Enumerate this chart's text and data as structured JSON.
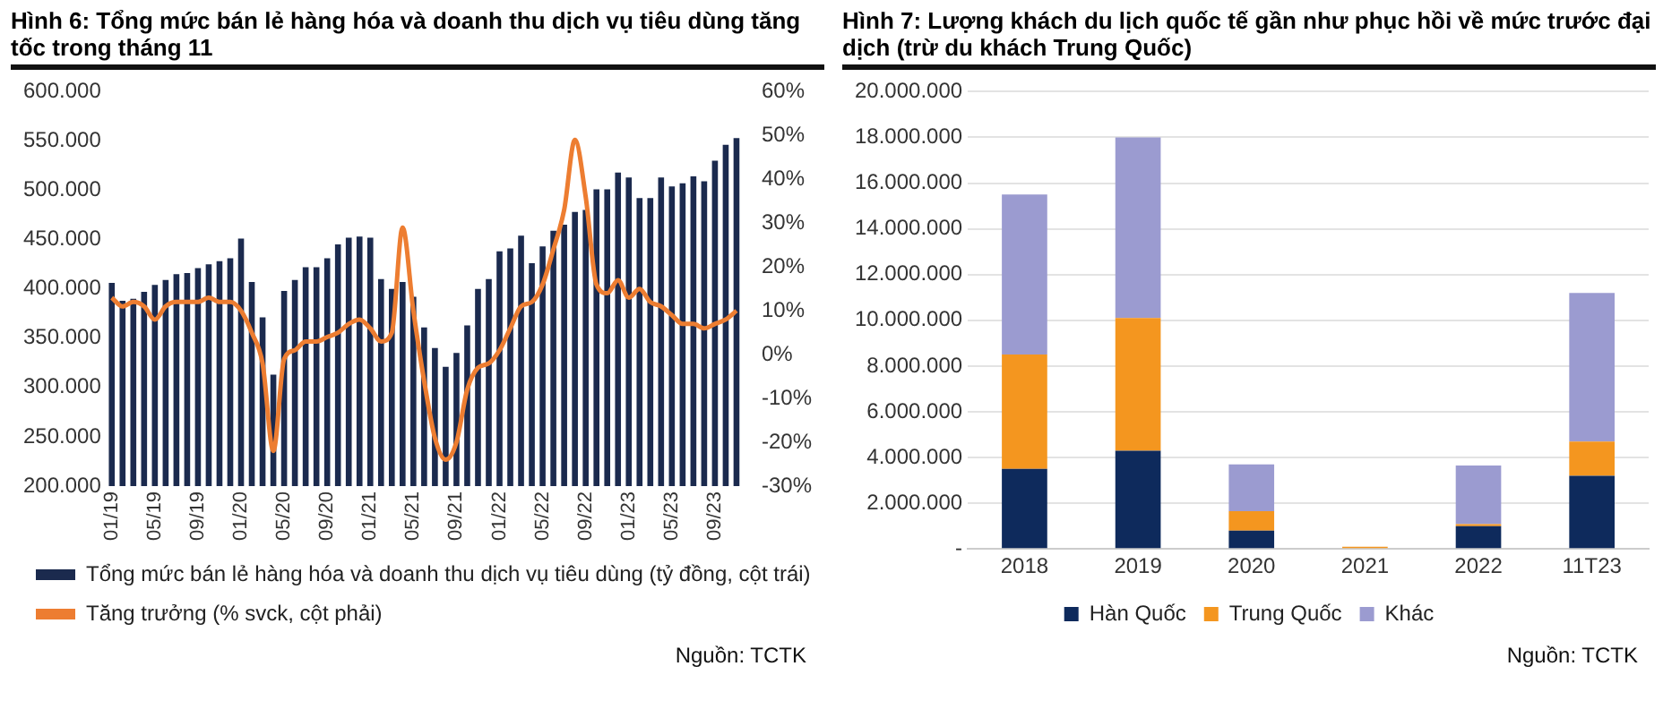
{
  "chart_data": [
    {
      "type": "bar",
      "title": "Hình 6: Tổng mức bán lẻ hàng hóa và doanh thu dịch vụ tiêu dùng tăng tốc trong tháng 11",
      "categories": [
        "01/19",
        null,
        null,
        null,
        "05/19",
        null,
        null,
        null,
        "09/19",
        null,
        null,
        null,
        "01/20",
        null,
        null,
        null,
        "05/20",
        null,
        null,
        null,
        "09/20",
        null,
        null,
        null,
        "01/21",
        null,
        null,
        null,
        "05/21",
        null,
        null,
        null,
        "09/21",
        null,
        null,
        null,
        "01/22",
        null,
        null,
        null,
        "05/22",
        null,
        null,
        null,
        "09/22",
        null,
        null,
        null,
        "01/23",
        null,
        null,
        null,
        "05/23",
        null,
        null,
        null,
        "09/23",
        null,
        null
      ],
      "series": [
        {
          "name": "Tổng mức bán lẻ hàng hóa và doanh thu dịch vụ tiêu dùng (tỷ đồng, cột trái)",
          "type": "bar",
          "color": "#1b2a4e",
          "values": [
            406000,
            388000,
            390000,
            397000,
            404000,
            409000,
            415000,
            416000,
            421000,
            425000,
            428000,
            431000,
            451000,
            407000,
            371000,
            313000,
            398000,
            409000,
            422000,
            422000,
            431000,
            445000,
            452000,
            453000,
            452000,
            410000,
            400000,
            407000,
            392000,
            361000,
            340000,
            321000,
            335000,
            363000,
            400000,
            410000,
            438000,
            441000,
            454000,
            426000,
            443000,
            459000,
            465000,
            478000,
            480000,
            501000,
            501000,
            518000,
            513000,
            492000,
            492000,
            513000,
            504000,
            507000,
            514000,
            509000,
            530000,
            546000,
            553000
          ]
        },
        {
          "name": "Tăng trưởng (% svck, cột phải)",
          "type": "line",
          "axis": "y2",
          "color": "#ed7d31",
          "values": [
            13,
            11,
            12,
            11,
            8,
            11,
            12,
            12,
            12,
            13,
            12,
            12,
            10,
            5,
            -2,
            -22,
            -1,
            1,
            3,
            3,
            4,
            5,
            7,
            8,
            6,
            3,
            5,
            29,
            10,
            -6,
            -19,
            -24,
            -20,
            -8,
            -3,
            -2,
            1,
            6,
            11,
            12,
            16,
            24,
            33,
            49,
            36,
            16,
            14,
            17,
            13,
            15,
            12,
            11,
            9,
            7,
            7,
            6,
            7,
            8,
            10
          ]
        }
      ],
      "ylim": [
        200000,
        600000
      ],
      "yticks": [
        {
          "value": 200000,
          "label": "200.000"
        },
        {
          "value": 250000,
          "label": "250.000"
        },
        {
          "value": 300000,
          "label": "300.000"
        },
        {
          "value": 350000,
          "label": "350.000"
        },
        {
          "value": 400000,
          "label": "400.000"
        },
        {
          "value": 450000,
          "label": "450.000"
        },
        {
          "value": 500000,
          "label": "500.000"
        },
        {
          "value": 550000,
          "label": "550.000"
        },
        {
          "value": 600000,
          "label": "600.000"
        }
      ],
      "y2lim": [
        -30,
        60
      ],
      "y2ticks": [
        {
          "value": -30,
          "label": "-30%"
        },
        {
          "value": -20,
          "label": "-20%"
        },
        {
          "value": -10,
          "label": "-10%"
        },
        {
          "value": 0,
          "label": "0%"
        },
        {
          "value": 10,
          "label": "10%"
        },
        {
          "value": 20,
          "label": "20%"
        },
        {
          "value": 30,
          "label": "30%"
        },
        {
          "value": 40,
          "label": "40%"
        },
        {
          "value": 50,
          "label": "50%"
        },
        {
          "value": 60,
          "label": "60%"
        }
      ],
      "grid": false,
      "legend": "bottom",
      "marker": "none",
      "annotations": [
        "Nguồn: TCTK"
      ]
    },
    {
      "type": "bar",
      "title": "Hình 7: Lượng khách du lịch quốc tế gần như phục hồi về mức trước đại dịch (trừ du khách Trung Quốc)",
      "categories": [
        "2018",
        "2019",
        "2020",
        "2021",
        "2022",
        "11T23"
      ],
      "stacked": true,
      "series": [
        {
          "name": "Hàn Quốc",
          "color": "#0e2a5c",
          "values": [
            3500000,
            4300000,
            800000,
            null,
            1000000,
            3200000
          ]
        },
        {
          "name": "Trung Quốc",
          "color": "#f4961f",
          "values": [
            5000000,
            5800000,
            850000,
            100000,
            80000,
            1500000
          ]
        },
        {
          "name": "Khác",
          "color": "#9b9bd0",
          "values": [
            7000000,
            7900000,
            2050000,
            0,
            2570000,
            6500000
          ]
        }
      ],
      "ylim": [
        0,
        20000000
      ],
      "yticks": [
        {
          "value": 0,
          "label": "-"
        },
        {
          "value": 2000000,
          "label": "2.000.000"
        },
        {
          "value": 4000000,
          "label": "4.000.000"
        },
        {
          "value": 6000000,
          "label": "6.000.000"
        },
        {
          "value": 8000000,
          "label": "8.000.000"
        },
        {
          "value": 10000000,
          "label": "10.000.000"
        },
        {
          "value": 12000000,
          "label": "12.000.000"
        },
        {
          "value": 14000000,
          "label": "14.000.000"
        },
        {
          "value": 16000000,
          "label": "16.000.000"
        },
        {
          "value": 18000000,
          "label": "18.000.000"
        },
        {
          "value": 20000000,
          "label": "20.000.000"
        }
      ],
      "grid": "y",
      "legend": "bottom",
      "annotations": [
        "Nguồn: TCTK"
      ]
    }
  ]
}
